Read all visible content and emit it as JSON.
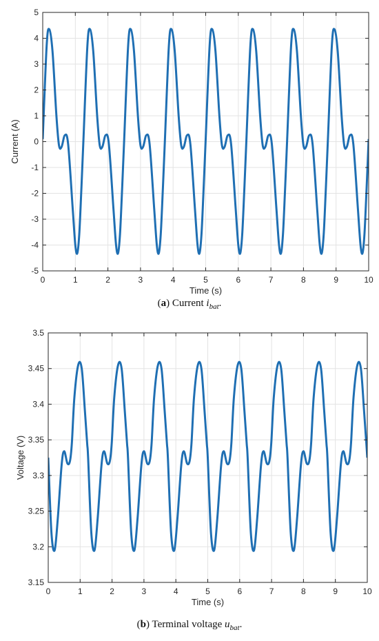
{
  "chart_data": [
    {
      "type": "line",
      "xlabel": "Time (s)",
      "ylabel": "Current (A)",
      "xlim": [
        0,
        10
      ],
      "ylim": [
        -5,
        5
      ],
      "xticks": [
        "0",
        "1",
        "2",
        "3",
        "4",
        "5",
        "6",
        "7",
        "8",
        "9",
        "10"
      ],
      "yticks": [
        "5",
        "4",
        "3",
        "2",
        "1",
        "0",
        "-1",
        "-2",
        "-3",
        "-4",
        "-5"
      ],
      "grid": true,
      "line_color": "#1f6fb3",
      "period_s": 1.25,
      "pattern": {
        "x": [
          0.0,
          0.12,
          0.2,
          0.3,
          0.42,
          0.5,
          0.58,
          0.68,
          0.78,
          0.92,
          1.0,
          1.06,
          1.12,
          1.18,
          1.25
        ],
        "y": [
          0.1,
          3.7,
          4.35,
          3.5,
          1.0,
          -0.15,
          -0.2,
          0.25,
          -0.1,
          -2.6,
          -4.0,
          -4.32,
          -3.6,
          -2.0,
          0.1
        ]
      },
      "caption_label": "a",
      "caption_text": "Current",
      "caption_symbol": "i",
      "caption_sub": "bat"
    },
    {
      "type": "line",
      "xlabel": "Time (s)",
      "ylabel": "Voltage (V)",
      "xlim": [
        0,
        10
      ],
      "ylim": [
        3.15,
        3.5
      ],
      "xticks": [
        "0",
        "1",
        "2",
        "3",
        "4",
        "5",
        "6",
        "7",
        "8",
        "9",
        "10"
      ],
      "yticks": [
        "3.5",
        "3.45",
        "3.4",
        "3.35",
        "3.3",
        "3.25",
        "3.2",
        "3.15"
      ],
      "grid": true,
      "line_color": "#1f6fb3",
      "period_s": 1.25,
      "pattern": {
        "x": [
          0.0,
          0.1,
          0.2,
          0.3,
          0.42,
          0.5,
          0.6,
          0.68,
          0.74,
          0.82,
          0.94,
          1.05,
          1.15,
          1.22,
          1.25
        ],
        "y": [
          3.325,
          3.22,
          3.195,
          3.24,
          3.315,
          3.334,
          3.317,
          3.32,
          3.345,
          3.41,
          3.455,
          3.45,
          3.39,
          3.345,
          3.325
        ]
      },
      "caption_label": "b",
      "caption_text": "Terminal voltage",
      "caption_symbol": "u",
      "caption_sub": "bat"
    }
  ]
}
